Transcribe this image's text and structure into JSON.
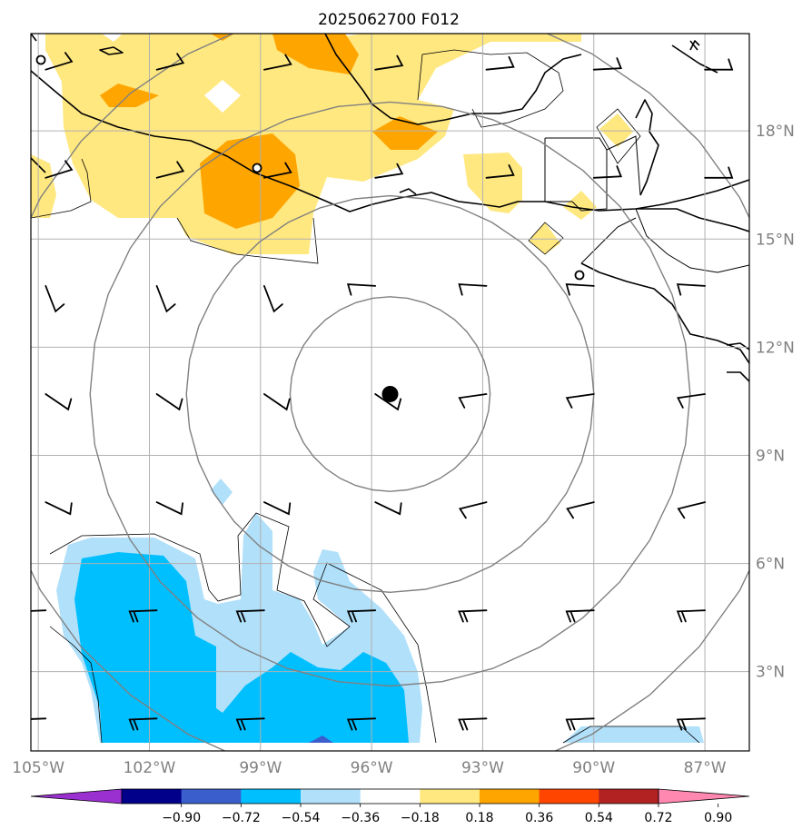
{
  "title": "2025062700 F012",
  "map": {
    "extent": {
      "lon_min": -105.2,
      "lon_max": -85.8,
      "lat_min": 0.8,
      "lat_max": 20.7
    },
    "lon_ticks": [
      {
        "value": -105,
        "label": "105°W"
      },
      {
        "value": -102,
        "label": "102°W"
      },
      {
        "value": -99,
        "label": "99°W"
      },
      {
        "value": -96,
        "label": "96°W"
      },
      {
        "value": -93,
        "label": "93°W"
      },
      {
        "value": -90,
        "label": "90°W"
      },
      {
        "value": -87,
        "label": "87°W"
      }
    ],
    "lat_ticks": [
      {
        "value": 3,
        "label": "3°N"
      },
      {
        "value": 6,
        "label": "6°N"
      },
      {
        "value": 9,
        "label": "9°N"
      },
      {
        "value": 12,
        "label": "12°N"
      },
      {
        "value": 15,
        "label": "15°N"
      },
      {
        "value": 18,
        "label": "18°N"
      }
    ],
    "gridlines": true,
    "center_marker": {
      "lon": -95.5,
      "lat": 10.7
    },
    "range_rings_deg": [
      2.7,
      5.5,
      8.1,
      10.9
    ],
    "colors": {
      "land_edge": "#000000",
      "ring": "#808080",
      "grid": "#b0b0b0"
    }
  },
  "colorbar": {
    "colors": [
      "#9b30d0",
      "#00008b",
      "#3a5fcd",
      "#00bfff",
      "#b0e0fa",
      "#ffffff",
      "#ffe880",
      "#ffa500",
      "#ff4500",
      "#b22222",
      "#ff88b0"
    ],
    "labels": [
      "−0.90",
      "−0.72",
      "−0.54",
      "−0.36",
      "−0.18",
      "0.18",
      "0.36",
      "0.54",
      "0.72",
      "0.90"
    ],
    "extend": "both"
  }
}
